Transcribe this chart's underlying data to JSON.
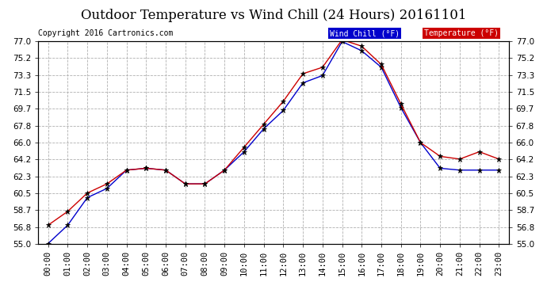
{
  "title": "Outdoor Temperature vs Wind Chill (24 Hours) 20161101",
  "copyright": "Copyright 2016 Cartronics.com",
  "x_labels": [
    "00:00",
    "01:00",
    "02:00",
    "03:00",
    "04:00",
    "05:00",
    "06:00",
    "07:00",
    "08:00",
    "09:00",
    "10:00",
    "11:00",
    "12:00",
    "13:00",
    "14:00",
    "15:00",
    "16:00",
    "17:00",
    "18:00",
    "19:00",
    "20:00",
    "21:00",
    "22:00",
    "23:00"
  ],
  "temperature": [
    57.0,
    58.5,
    60.5,
    61.5,
    63.0,
    63.2,
    63.0,
    61.5,
    61.5,
    63.0,
    65.5,
    68.0,
    70.5,
    73.5,
    74.2,
    77.2,
    76.5,
    74.5,
    70.2,
    66.0,
    64.5,
    64.2,
    65.0,
    64.2
  ],
  "wind_chill": [
    55.0,
    57.0,
    60.0,
    61.0,
    63.0,
    63.2,
    63.0,
    61.5,
    61.5,
    63.0,
    65.0,
    67.5,
    69.5,
    72.5,
    73.3,
    77.0,
    76.0,
    74.2,
    69.8,
    66.0,
    63.2,
    63.0,
    63.0,
    63.0
  ],
  "temp_color": "#cc0000",
  "wind_chill_color": "#0000cc",
  "background_color": "#ffffff",
  "plot_bg_color": "#ffffff",
  "grid_color": "#b0b0b0",
  "ylim": [
    55.0,
    77.0
  ],
  "yticks": [
    55.0,
    56.8,
    58.7,
    60.5,
    62.3,
    64.2,
    66.0,
    67.8,
    69.7,
    71.5,
    73.3,
    75.2,
    77.0
  ],
  "title_fontsize": 12,
  "copyright_fontsize": 7,
  "tick_fontsize": 7.5,
  "legend_wind_chill_label": "Wind Chill (°F)",
  "legend_temp_label": "Temperature (°F)"
}
